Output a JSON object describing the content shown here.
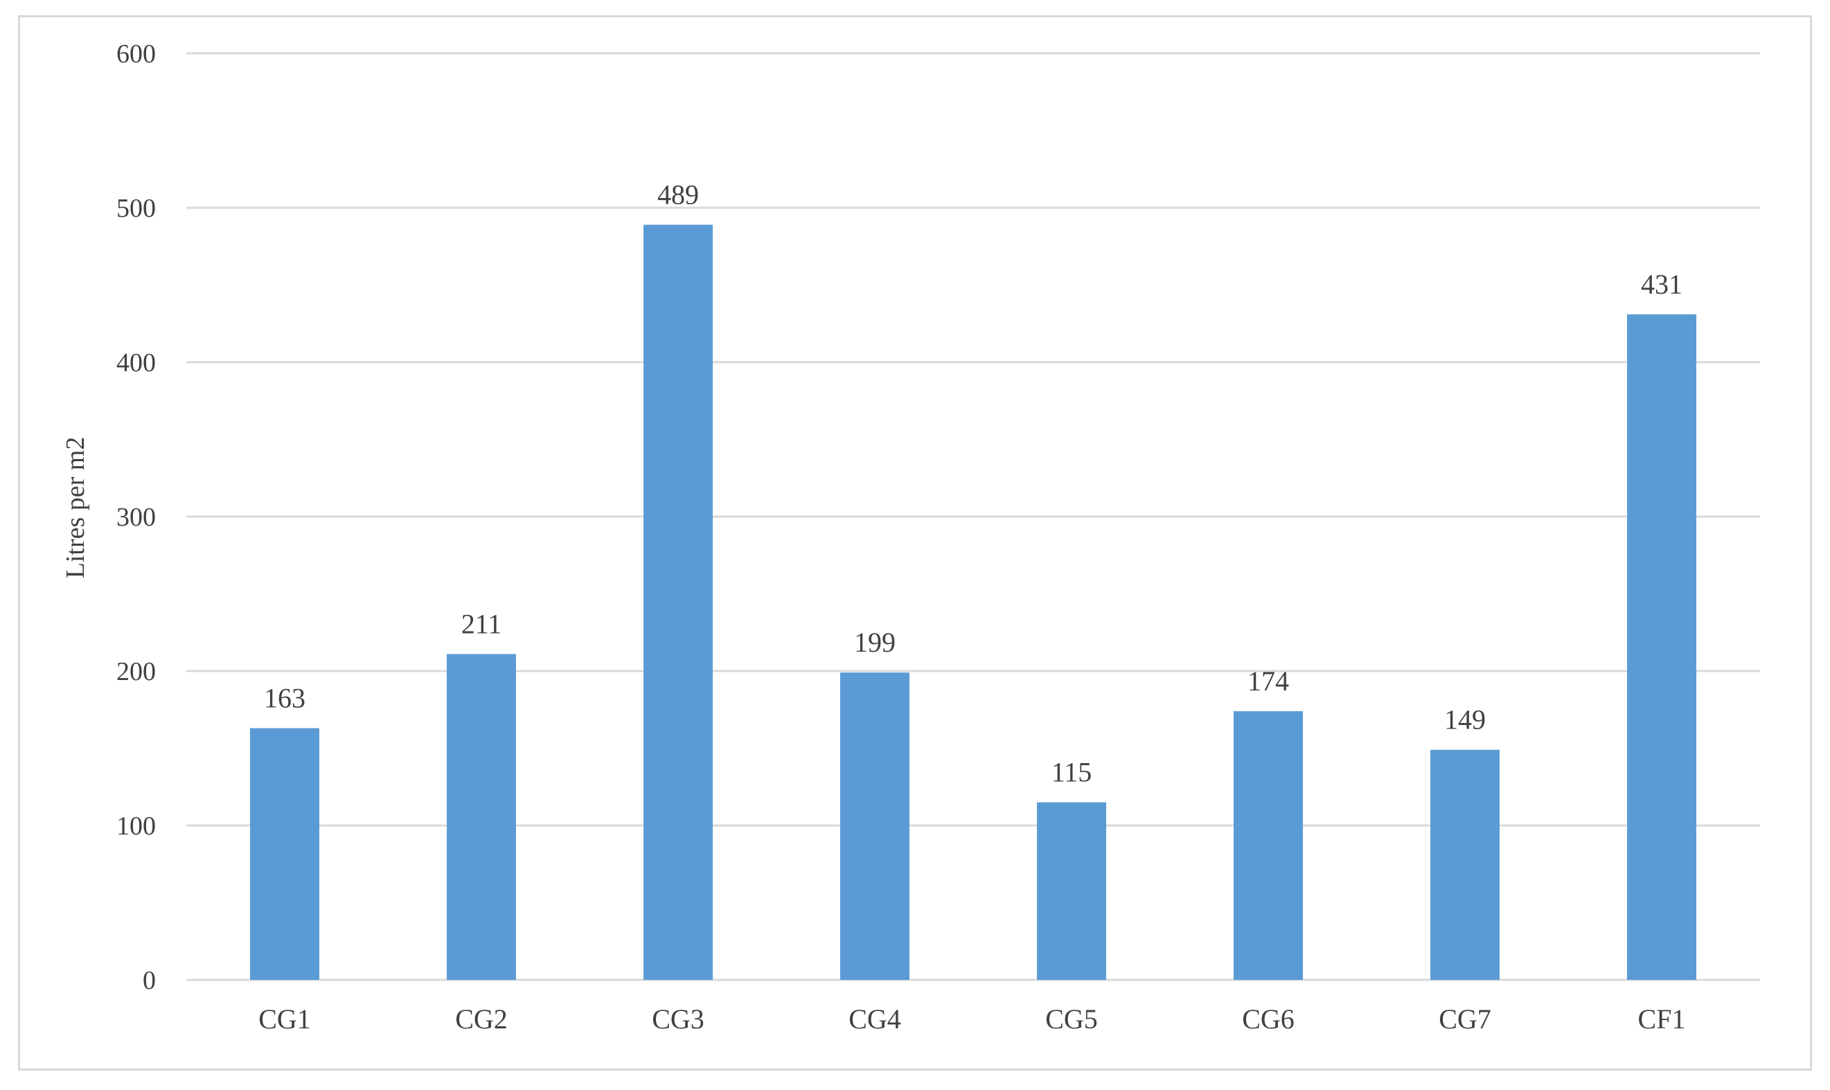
{
  "chart_data": {
    "type": "bar",
    "title": "",
    "xlabel": "",
    "ylabel": "Litres per m2",
    "categories": [
      "CG1",
      "CG2",
      "CG3",
      "CG4",
      "CG5",
      "CG6",
      "CG7",
      "CF1"
    ],
    "values": [
      163,
      211,
      489,
      199,
      115,
      174,
      149,
      431
    ],
    "ylim": [
      0,
      600
    ],
    "yticks": [
      0,
      100,
      200,
      300,
      400,
      500,
      600
    ],
    "grid": true,
    "legend": "none",
    "data_labels": true,
    "bar_color": "#5b9bd5"
  }
}
